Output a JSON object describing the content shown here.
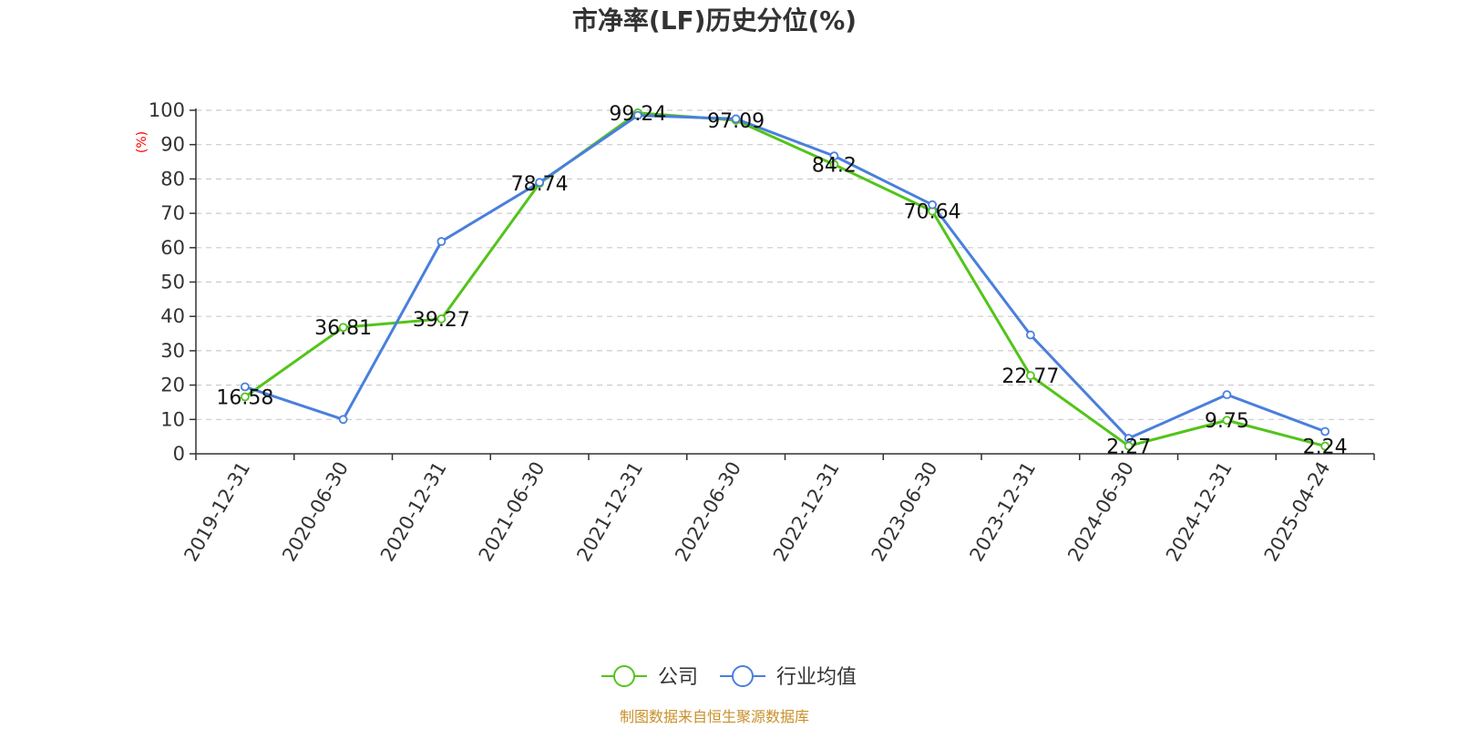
{
  "chart_data": {
    "type": "line",
    "title": "市净率(LF)历史分位(%)",
    "ylabel": "(%)",
    "ylim": [
      0,
      100
    ],
    "yticks": [
      0,
      10,
      20,
      30,
      40,
      50,
      60,
      70,
      80,
      90,
      100
    ],
    "categories": [
      "2019-12-31",
      "2020-06-30",
      "2020-12-31",
      "2021-06-30",
      "2021-12-31",
      "2022-06-30",
      "2022-12-31",
      "2023-06-30",
      "2023-12-31",
      "2024-06-30",
      "2024-12-31",
      "2025-04-24"
    ],
    "series": [
      {
        "name": "公司",
        "color": "#52c41a",
        "values": [
          16.58,
          36.81,
          39.27,
          78.74,
          99.24,
          97.09,
          84.2,
          70.64,
          22.77,
          2.27,
          9.75,
          2.24
        ],
        "labels": [
          "16.58",
          "36.81",
          "39.27",
          "78.74",
          "99.24",
          "97.09",
          "84.2",
          "70.64",
          "22.77",
          "2.27",
          "9.75",
          "2.24"
        ]
      },
      {
        "name": "行业均值",
        "color": "#4a7fdc",
        "values": [
          19.5,
          10.0,
          61.8,
          79.0,
          98.5,
          97.5,
          86.7,
          72.5,
          34.6,
          4.5,
          17.2,
          6.5
        ]
      }
    ],
    "grid": true,
    "legend_position": "bottom-center"
  },
  "source": "制图数据来自恒生聚源数据库"
}
